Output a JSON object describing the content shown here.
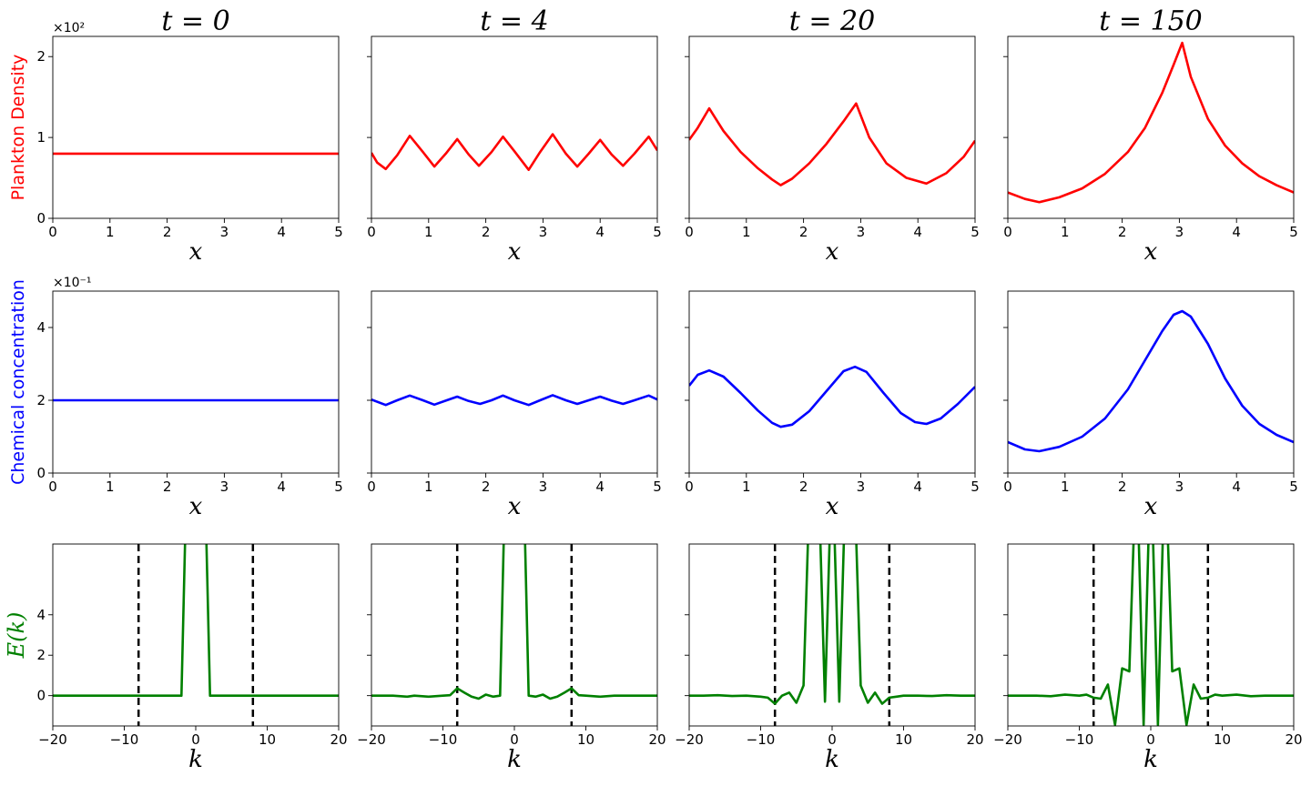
{
  "figure": {
    "col_titles": [
      "t = 0",
      "t = 4",
      "t = 20",
      "t = 150"
    ],
    "row_ylabels": [
      "Plankton Density",
      "Chemical concentration",
      "E(k)"
    ],
    "row_colors": [
      "#ff0000",
      "#0000ff",
      "#008000"
    ],
    "row_xlabels": [
      "x",
      "x",
      "k"
    ],
    "row_offsets": [
      "×10²",
      "×10⁻¹",
      ""
    ]
  },
  "chart_data": [
    {
      "type": "line",
      "row": "plankton",
      "title": "t = 0",
      "xlabel": "x",
      "ylabel": "Plankton Density",
      "color": "#ff0000",
      "offset_text": "×10²",
      "xlim": [
        0,
        5
      ],
      "ylim": [
        0,
        2.25
      ],
      "xticks": [
        0,
        1,
        2,
        3,
        4,
        5
      ],
      "yticks": [
        0,
        1,
        2
      ],
      "x": [
        0,
        5
      ],
      "y": [
        0.8,
        0.8
      ]
    },
    {
      "type": "line",
      "row": "plankton",
      "title": "t = 4",
      "xlabel": "x",
      "ylabel": "",
      "color": "#ff0000",
      "xlim": [
        0,
        5
      ],
      "ylim": [
        0,
        2.25
      ],
      "xticks": [
        0,
        1,
        2,
        3,
        4,
        5
      ],
      "yticks": [
        0,
        1,
        2
      ],
      "x": [
        0,
        0.1,
        0.25,
        0.45,
        0.67,
        0.9,
        1.1,
        1.3,
        1.5,
        1.7,
        1.88,
        2.1,
        2.3,
        2.5,
        2.75,
        2.95,
        3.17,
        3.4,
        3.6,
        3.8,
        4.0,
        4.2,
        4.4,
        4.6,
        4.85,
        5.0
      ],
      "y": [
        0.81,
        0.69,
        0.61,
        0.78,
        1.02,
        0.82,
        0.64,
        0.8,
        0.98,
        0.79,
        0.65,
        0.82,
        1.01,
        0.83,
        0.6,
        0.82,
        1.04,
        0.8,
        0.64,
        0.8,
        0.97,
        0.79,
        0.65,
        0.8,
        1.01,
        0.84
      ]
    },
    {
      "type": "line",
      "row": "plankton",
      "title": "t = 20",
      "xlabel": "x",
      "ylabel": "",
      "color": "#ff0000",
      "xlim": [
        0,
        5
      ],
      "ylim": [
        0,
        2.25
      ],
      "xticks": [
        0,
        1,
        2,
        3,
        4,
        5
      ],
      "yticks": [
        0,
        1,
        2
      ],
      "x": [
        0,
        0.15,
        0.35,
        0.6,
        0.9,
        1.2,
        1.45,
        1.6,
        1.8,
        2.1,
        2.4,
        2.7,
        2.92,
        3.15,
        3.45,
        3.8,
        4.15,
        4.5,
        4.8,
        5.0
      ],
      "y": [
        0.97,
        1.12,
        1.36,
        1.08,
        0.82,
        0.62,
        0.48,
        0.41,
        0.49,
        0.68,
        0.92,
        1.2,
        1.42,
        1.0,
        0.68,
        0.5,
        0.43,
        0.56,
        0.76,
        0.96
      ]
    },
    {
      "type": "line",
      "row": "plankton",
      "title": "t = 150",
      "xlabel": "x",
      "ylabel": "",
      "color": "#ff0000",
      "xlim": [
        0,
        5
      ],
      "ylim": [
        0,
        2.25
      ],
      "xticks": [
        0,
        1,
        2,
        3,
        4,
        5
      ],
      "yticks": [
        0,
        1,
        2
      ],
      "x": [
        0,
        0.3,
        0.55,
        0.9,
        1.3,
        1.7,
        2.1,
        2.4,
        2.7,
        2.9,
        3.05,
        3.2,
        3.5,
        3.8,
        4.1,
        4.4,
        4.7,
        5.0
      ],
      "y": [
        0.32,
        0.24,
        0.2,
        0.26,
        0.37,
        0.55,
        0.82,
        1.12,
        1.55,
        1.9,
        2.17,
        1.75,
        1.23,
        0.9,
        0.68,
        0.52,
        0.41,
        0.32
      ]
    },
    {
      "type": "line",
      "row": "chemical",
      "title": "",
      "xlabel": "x",
      "ylabel": "Chemical concentration",
      "color": "#0000ff",
      "offset_text": "×10⁻¹",
      "xlim": [
        0,
        5
      ],
      "ylim": [
        0,
        5
      ],
      "xticks": [
        0,
        1,
        2,
        3,
        4,
        5
      ],
      "yticks": [
        0,
        2,
        4
      ],
      "x": [
        0,
        5
      ],
      "y": [
        2.0,
        2.0
      ]
    },
    {
      "type": "line",
      "row": "chemical",
      "title": "",
      "xlabel": "x",
      "ylabel": "",
      "color": "#0000ff",
      "xlim": [
        0,
        5
      ],
      "ylim": [
        0,
        5
      ],
      "xticks": [
        0,
        1,
        2,
        3,
        4,
        5
      ],
      "yticks": [
        0,
        2,
        4
      ],
      "x": [
        0,
        0.25,
        0.45,
        0.67,
        0.9,
        1.1,
        1.3,
        1.5,
        1.7,
        1.9,
        2.1,
        2.3,
        2.5,
        2.75,
        2.95,
        3.17,
        3.4,
        3.6,
        3.8,
        4.0,
        4.2,
        4.4,
        4.6,
        4.85,
        5.0
      ],
      "y": [
        2.02,
        1.87,
        2.0,
        2.13,
        2.0,
        1.88,
        1.99,
        2.1,
        1.98,
        1.9,
        2.0,
        2.13,
        2.0,
        1.87,
        2.0,
        2.14,
        2.0,
        1.9,
        2.0,
        2.1,
        1.99,
        1.9,
        2.0,
        2.13,
        2.02
      ]
    },
    {
      "type": "line",
      "row": "chemical",
      "title": "",
      "xlabel": "x",
      "ylabel": "",
      "color": "#0000ff",
      "xlim": [
        0,
        5
      ],
      "ylim": [
        0,
        5
      ],
      "xticks": [
        0,
        1,
        2,
        3,
        4,
        5
      ],
      "yticks": [
        0,
        2,
        4
      ],
      "x": [
        0,
        0.15,
        0.35,
        0.6,
        0.9,
        1.2,
        1.45,
        1.6,
        1.8,
        2.1,
        2.4,
        2.7,
        2.9,
        3.1,
        3.4,
        3.7,
        3.95,
        4.15,
        4.4,
        4.7,
        5.0
      ],
      "y": [
        2.4,
        2.7,
        2.82,
        2.65,
        2.2,
        1.72,
        1.38,
        1.27,
        1.33,
        1.7,
        2.25,
        2.8,
        2.92,
        2.78,
        2.2,
        1.65,
        1.4,
        1.35,
        1.5,
        1.9,
        2.37
      ]
    },
    {
      "type": "line",
      "row": "chemical",
      "title": "",
      "xlabel": "x",
      "ylabel": "",
      "color": "#0000ff",
      "xlim": [
        0,
        5
      ],
      "ylim": [
        0,
        5
      ],
      "xticks": [
        0,
        1,
        2,
        3,
        4,
        5
      ],
      "yticks": [
        0,
        2,
        4
      ],
      "x": [
        0,
        0.3,
        0.55,
        0.9,
        1.3,
        1.7,
        2.1,
        2.4,
        2.7,
        2.9,
        3.05,
        3.2,
        3.5,
        3.8,
        4.1,
        4.4,
        4.7,
        5.0
      ],
      "y": [
        0.85,
        0.65,
        0.6,
        0.72,
        1.0,
        1.5,
        2.3,
        3.1,
        3.9,
        4.35,
        4.45,
        4.3,
        3.55,
        2.6,
        1.85,
        1.35,
        1.05,
        0.85
      ]
    },
    {
      "type": "line",
      "row": "spectrum",
      "title": "",
      "xlabel": "k",
      "ylabel": "E(k)",
      "color": "#008000",
      "xlim": [
        -20,
        20
      ],
      "ylim": [
        -1.5,
        7.5
      ],
      "xticks": [
        -20,
        -10,
        0,
        10,
        20
      ],
      "yticks": [
        0,
        2,
        4
      ],
      "ytick_labels": [
        "0",
        "2",
        "4"
      ],
      "reference_lines": [
        -8,
        8
      ],
      "x": [
        -20,
        -2,
        -1.2,
        1.2,
        2,
        20
      ],
      "y": [
        0,
        0,
        12,
        12,
        0,
        0
      ]
    },
    {
      "type": "line",
      "row": "spectrum",
      "title": "",
      "xlabel": "k",
      "ylabel": "",
      "color": "#008000",
      "xlim": [
        -20,
        20
      ],
      "ylim": [
        -1.5,
        7.5
      ],
      "xticks": [
        -20,
        -10,
        0,
        10,
        20
      ],
      "yticks": [
        0,
        2,
        4
      ],
      "reference_lines": [
        -8,
        8
      ],
      "x": [
        -20,
        -17,
        -15,
        -14,
        -12,
        -10,
        -9,
        -8,
        -7,
        -6,
        -5,
        -4,
        -3,
        -2,
        -1.2,
        1.2,
        2,
        3,
        4,
        5,
        6,
        7,
        8,
        9,
        10,
        12,
        14,
        16,
        20
      ],
      "y": [
        0,
        0,
        -0.05,
        0,
        -0.05,
        0,
        0.02,
        0.36,
        0.15,
        -0.05,
        -0.15,
        0.05,
        -0.05,
        0,
        12,
        12,
        0,
        -0.05,
        0.05,
        -0.15,
        -0.05,
        0.15,
        0.36,
        0.02,
        0,
        -0.05,
        0,
        0,
        0
      ]
    },
    {
      "type": "line",
      "row": "spectrum",
      "title": "",
      "xlabel": "k",
      "ylabel": "",
      "color": "#008000",
      "xlim": [
        -20,
        20
      ],
      "ylim": [
        -1.5,
        7.5
      ],
      "xticks": [
        -20,
        -10,
        0,
        10,
        20
      ],
      "yticks": [
        0,
        2,
        4
      ],
      "reference_lines": [
        -8,
        8
      ],
      "x": [
        -20,
        -18,
        -16,
        -14,
        -12,
        -10,
        -9,
        -8,
        -7,
        -6,
        -5,
        -4,
        -3,
        -2,
        -1,
        0,
        1,
        2,
        3,
        4,
        5,
        6,
        7,
        8,
        9,
        10,
        12,
        14,
        16,
        18,
        20
      ],
      "y": [
        0,
        0,
        0.02,
        -0.02,
        0,
        -0.05,
        -0.1,
        -0.4,
        0,
        0.15,
        -0.35,
        0.5,
        12,
        12,
        -0.3,
        12,
        -0.3,
        12,
        12,
        0.5,
        -0.35,
        0.15,
        -0.4,
        -0.1,
        -0.05,
        0,
        0,
        -0.02,
        0.02,
        0,
        0
      ]
    },
    {
      "type": "line",
      "row": "spectrum",
      "title": "",
      "xlabel": "k",
      "ylabel": "",
      "color": "#008000",
      "xlim": [
        -20,
        20
      ],
      "ylim": [
        -1.5,
        7.5
      ],
      "xticks": [
        -20,
        -10,
        0,
        10,
        20
      ],
      "yticks": [
        0,
        2,
        4
      ],
      "reference_lines": [
        -8,
        8
      ],
      "x": [
        -20,
        -18,
        -16,
        -14,
        -12,
        -10,
        -9,
        -8,
        -7,
        -6,
        -5,
        -4,
        -3,
        -2,
        -1,
        0,
        1,
        2,
        3,
        4,
        5,
        6,
        7,
        8,
        9,
        10,
        12,
        14,
        16,
        18,
        20
      ],
      "y": [
        0,
        0,
        0,
        -0.03,
        0.05,
        0,
        0.05,
        -0.1,
        -0.15,
        0.55,
        -1.45,
        1.35,
        1.2,
        12,
        -1.45,
        12,
        -1.45,
        12,
        1.2,
        1.35,
        -1.45,
        0.55,
        -0.15,
        -0.1,
        0.05,
        0,
        0.05,
        -0.03,
        0,
        0,
        0
      ]
    }
  ]
}
